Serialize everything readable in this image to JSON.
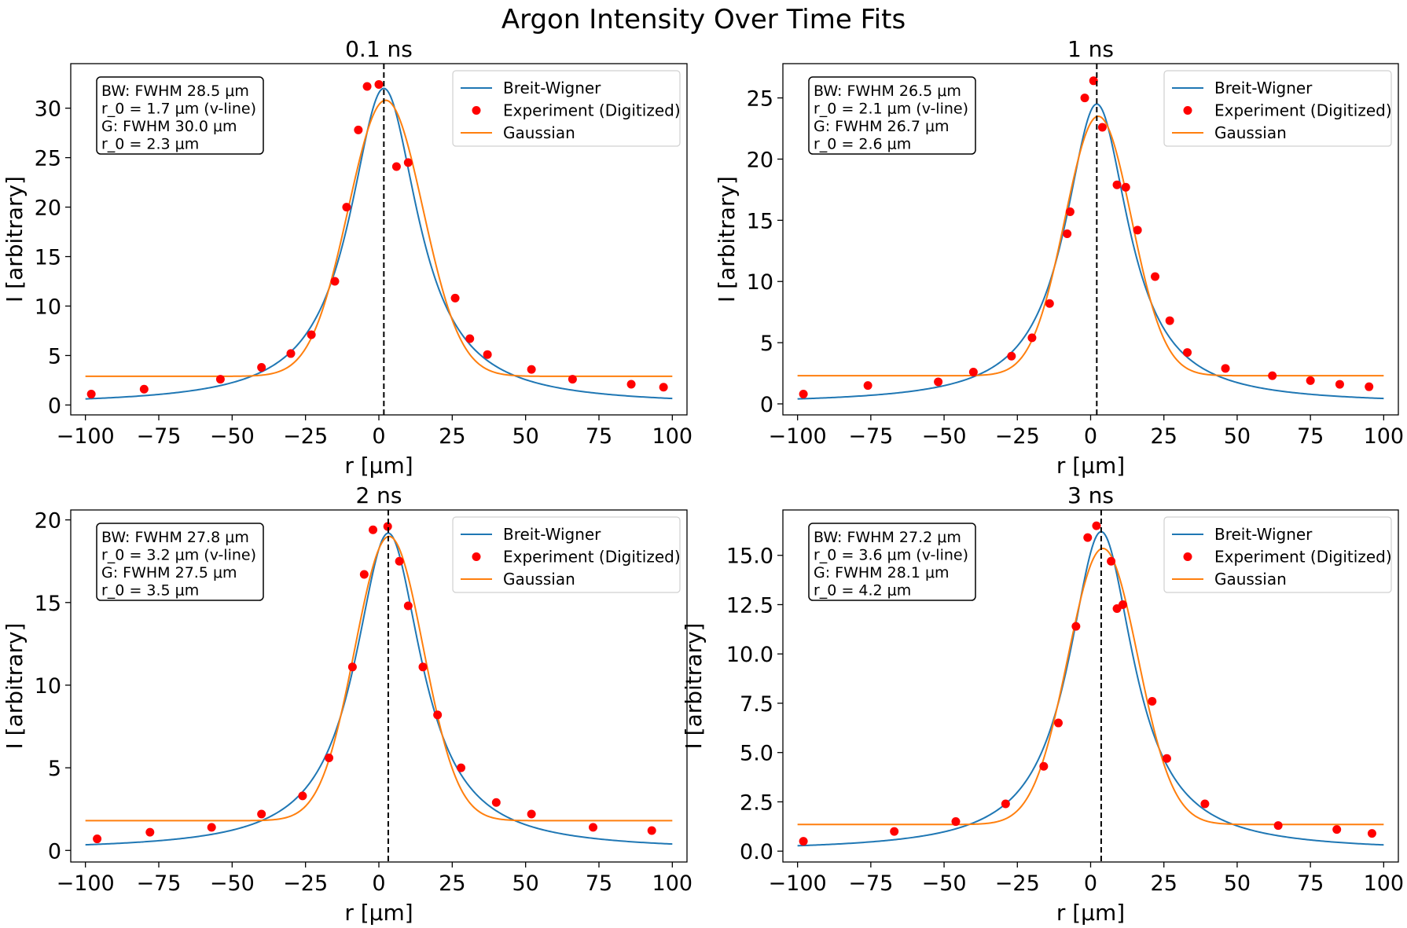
{
  "figure_title": "Argon Intensity Over Time Fits",
  "colors": {
    "breit_wigner": "#1f77b4",
    "gaussian": "#ff7f0e",
    "experiment": "#ff0000",
    "vline": "#000000"
  },
  "chart_data": [
    {
      "type": "line",
      "title": "0.1 ns",
      "xlabel": "r [μm]",
      "ylabel": "I [arbitrary]",
      "xlim": [
        -105,
        105
      ],
      "ylim": [
        -1,
        34.5
      ],
      "xticks": [
        -100,
        -75,
        -50,
        -25,
        0,
        25,
        50,
        75,
        100
      ],
      "xtick_labels": [
        "−100",
        "−75",
        "−50",
        "−25",
        "0",
        "25",
        "50",
        "75",
        "100"
      ],
      "yticks": [
        0,
        5,
        10,
        15,
        20,
        25,
        30
      ],
      "ytick_labels": [
        "0",
        "5",
        "10",
        "15",
        "20",
        "25",
        "30"
      ],
      "legend": [
        "Breit-Wigner",
        "Experiment (Digitized)",
        "Gaussian"
      ],
      "legend_position": "top-right",
      "annotation": [
        "BW: FWHM 28.5 μm",
        "r_0 = 1.7 μm (v-line)",
        "G: FWHM 30.0 μm",
        "r_0 =  2.3 μm"
      ],
      "vline_x": 1.7,
      "series": [
        {
          "name": "Breit-Wigner",
          "kind": "lorentzian",
          "x0": 1.7,
          "fwhm": 28.5,
          "amplitude": 32.0,
          "offset": 0.0
        },
        {
          "name": "Gaussian",
          "kind": "gaussian",
          "x0": 2.3,
          "fwhm": 30.0,
          "amplitude": 27.9,
          "offset": 2.9
        },
        {
          "name": "Experiment (Digitized)",
          "kind": "points",
          "x": [
            -98,
            -80,
            -54,
            -40,
            -30,
            -23,
            -15,
            -11,
            -7,
            -4,
            0,
            6,
            10,
            26,
            31,
            37,
            52,
            66,
            86,
            97
          ],
          "y": [
            1.1,
            1.6,
            2.6,
            3.8,
            5.2,
            7.1,
            12.5,
            20.0,
            27.8,
            32.2,
            32.4,
            24.1,
            24.5,
            10.8,
            6.7,
            5.1,
            3.6,
            2.6,
            2.1,
            1.8
          ]
        }
      ]
    },
    {
      "type": "line",
      "title": "1 ns",
      "xlabel": "r [μm]",
      "ylabel": "I [arbitrary]",
      "xlim": [
        -105,
        105
      ],
      "ylim": [
        -0.9,
        27.8
      ],
      "xticks": [
        -100,
        -75,
        -50,
        -25,
        0,
        25,
        50,
        75,
        100
      ],
      "xtick_labels": [
        "−100",
        "−75",
        "−50",
        "−25",
        "0",
        "25",
        "50",
        "75",
        "100"
      ],
      "yticks": [
        0,
        5,
        10,
        15,
        20,
        25
      ],
      "ytick_labels": [
        "0",
        "5",
        "10",
        "15",
        "20",
        "25"
      ],
      "legend": [
        "Breit-Wigner",
        "Experiment (Digitized)",
        "Gaussian"
      ],
      "legend_position": "top-right",
      "annotation": [
        "BW: FWHM 26.5 μm",
        "r_0 = 2.1 μm (v-line)",
        "G: FWHM 26.7 μm",
        "r_0 =  2.6 μm"
      ],
      "vline_x": 2.1,
      "series": [
        {
          "name": "Breit-Wigner",
          "kind": "lorentzian",
          "x0": 2.1,
          "fwhm": 26.5,
          "amplitude": 24.5,
          "offset": 0.0
        },
        {
          "name": "Gaussian",
          "kind": "gaussian",
          "x0": 2.6,
          "fwhm": 26.7,
          "amplitude": 21.2,
          "offset": 2.3
        },
        {
          "name": "Experiment (Digitized)",
          "kind": "points",
          "x": [
            -98,
            -76,
            -52,
            -40,
            -27,
            -20,
            -14,
            -8,
            -7,
            -2,
            1,
            4,
            9,
            12,
            16,
            22,
            27,
            33,
            46,
            62,
            75,
            85,
            95
          ],
          "y": [
            0.8,
            1.5,
            1.8,
            2.6,
            3.9,
            5.4,
            8.2,
            13.9,
            15.7,
            25.0,
            26.4,
            22.6,
            17.9,
            17.7,
            14.2,
            10.4,
            6.8,
            4.2,
            2.9,
            2.3,
            1.9,
            1.6,
            1.4
          ]
        }
      ]
    },
    {
      "type": "line",
      "title": "2 ns",
      "xlabel": "r [μm]",
      "ylabel": "I [arbitrary]",
      "xlim": [
        -105,
        105
      ],
      "ylim": [
        -0.7,
        20.6
      ],
      "xticks": [
        -100,
        -75,
        -50,
        -25,
        0,
        25,
        50,
        75,
        100
      ],
      "xtick_labels": [
        "−100",
        "−75",
        "−50",
        "−25",
        "0",
        "25",
        "50",
        "75",
        "100"
      ],
      "yticks": [
        0,
        5,
        10,
        15,
        20
      ],
      "ytick_labels": [
        "0",
        "5",
        "10",
        "15",
        "20"
      ],
      "legend": [
        "Breit-Wigner",
        "Experiment (Digitized)",
        "Gaussian"
      ],
      "legend_position": "top-right",
      "annotation": [
        "BW: FWHM 27.8 μm",
        "r_0 = 3.2 μm (v-line)",
        "G: FWHM 27.5 μm",
        "r_0 =  3.5 μm"
      ],
      "vline_x": 3.2,
      "series": [
        {
          "name": "Breit-Wigner",
          "kind": "lorentzian",
          "x0": 3.2,
          "fwhm": 27.8,
          "amplitude": 19.2,
          "offset": 0.0
        },
        {
          "name": "Gaussian",
          "kind": "gaussian",
          "x0": 3.5,
          "fwhm": 27.5,
          "amplitude": 17.2,
          "offset": 1.8
        },
        {
          "name": "Experiment (Digitized)",
          "kind": "points",
          "x": [
            -96,
            -78,
            -57,
            -40,
            -26,
            -17,
            -9,
            -5,
            -2,
            3,
            7,
            10,
            15,
            20,
            28,
            40,
            52,
            73,
            93
          ],
          "y": [
            0.7,
            1.1,
            1.4,
            2.2,
            3.3,
            5.6,
            11.1,
            16.7,
            19.4,
            19.6,
            17.5,
            14.8,
            11.1,
            8.2,
            5.0,
            2.9,
            2.2,
            1.4,
            1.2
          ]
        }
      ]
    },
    {
      "type": "line",
      "title": "3 ns",
      "xlabel": "r [μm]",
      "ylabel": "I [arbitrary]",
      "xlim": [
        -105,
        105
      ],
      "ylim": [
        -0.55,
        17.3
      ],
      "xticks": [
        -100,
        -75,
        -50,
        -25,
        0,
        25,
        50,
        75,
        100
      ],
      "xtick_labels": [
        "−100",
        "−75",
        "−50",
        "−25",
        "0",
        "25",
        "50",
        "75",
        "100"
      ],
      "yticks": [
        0,
        2.5,
        5,
        7.5,
        10,
        12.5,
        15
      ],
      "ytick_labels": [
        "0.0",
        "2.5",
        "5.0",
        "7.5",
        "10.0",
        "12.5",
        "15.0"
      ],
      "legend": [
        "Breit-Wigner",
        "Experiment (Digitized)",
        "Gaussian"
      ],
      "legend_position": "top-right",
      "annotation": [
        "BW: FWHM 27.2 μm",
        "r_0 = 3.6 μm (v-line)",
        "G: FWHM 28.1 μm",
        "r_0 =  4.2 μm"
      ],
      "vline_x": 3.6,
      "series": [
        {
          "name": "Breit-Wigner",
          "kind": "lorentzian",
          "x0": 3.6,
          "fwhm": 27.2,
          "amplitude": 16.2,
          "offset": 0.0
        },
        {
          "name": "Gaussian",
          "kind": "gaussian",
          "x0": 4.2,
          "fwhm": 28.1,
          "amplitude": 14.0,
          "offset": 1.35
        },
        {
          "name": "Experiment (Digitized)",
          "kind": "points",
          "x": [
            -98,
            -67,
            -46,
            -29,
            -16,
            -11,
            -5,
            -1,
            2,
            7,
            9,
            11,
            21,
            26,
            39,
            64,
            84,
            96
          ],
          "y": [
            0.5,
            1.0,
            1.5,
            2.4,
            4.3,
            6.5,
            11.4,
            15.9,
            16.5,
            14.7,
            12.3,
            12.5,
            7.6,
            4.7,
            2.4,
            1.3,
            1.1,
            0.9
          ]
        }
      ]
    }
  ]
}
